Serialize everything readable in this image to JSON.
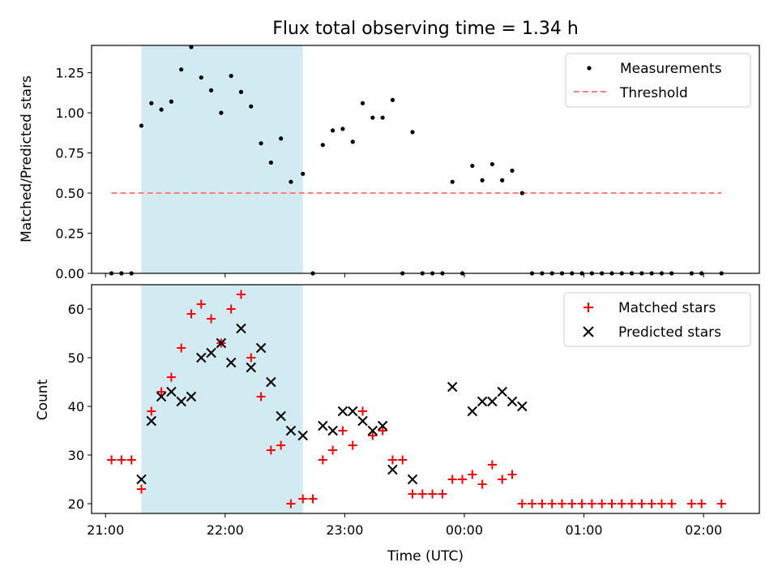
{
  "chart_data": [
    {
      "type": "scatter",
      "title": "Flux total observing time = 1.34 h",
      "xlabel": "",
      "ylabel": "Matched/Predicted stars",
      "xlim": [
        "20:53",
        "02:28"
      ],
      "ylim": [
        0,
        1.42
      ],
      "yticks": [
        "0.00",
        "0.25",
        "0.50",
        "0.75",
        "1.00",
        "1.25"
      ],
      "highlight_span": [
        "21:18",
        "22:39"
      ],
      "highlight_color": "#add8e6",
      "legend_position": "upper right",
      "series": [
        {
          "name": "Measurements",
          "color": "#000000",
          "marker": "dot",
          "points": [
            [
              "21:03",
              0
            ],
            [
              "21:08",
              0
            ],
            [
              "21:13",
              0
            ],
            [
              "21:18",
              0.92
            ],
            [
              "21:23",
              1.06
            ],
            [
              "21:28",
              1.02
            ],
            [
              "21:33",
              1.07
            ],
            [
              "21:38",
              1.27
            ],
            [
              "21:43",
              1.41
            ],
            [
              "21:48",
              1.22
            ],
            [
              "21:53",
              1.14
            ],
            [
              "21:58",
              1.0
            ],
            [
              "22:03",
              1.23
            ],
            [
              "22:08",
              1.13
            ],
            [
              "22:13",
              1.04
            ],
            [
              "22:18",
              0.81
            ],
            [
              "22:23",
              0.69
            ],
            [
              "22:28",
              0.84
            ],
            [
              "22:33",
              0.57
            ],
            [
              "22:39",
              0.62
            ],
            [
              "22:44",
              0
            ],
            [
              "22:49",
              0.8
            ],
            [
              "22:54",
              0.89
            ],
            [
              "22:59",
              0.9
            ],
            [
              "23:04",
              0.82
            ],
            [
              "23:09",
              1.06
            ],
            [
              "23:14",
              0.97
            ],
            [
              "23:19",
              0.97
            ],
            [
              "23:24",
              1.08
            ],
            [
              "23:29",
              0
            ],
            [
              "23:34",
              0.88
            ],
            [
              "23:39",
              0
            ],
            [
              "23:44",
              0
            ],
            [
              "23:49",
              0
            ],
            [
              "23:59",
              0
            ],
            [
              "23:54",
              0.57
            ],
            [
              "00:04",
              0.67
            ],
            [
              "00:09",
              0.58
            ],
            [
              "00:14",
              0.68
            ],
            [
              "00:19",
              0.58
            ],
            [
              "00:24",
              0.64
            ],
            [
              "00:29",
              0.5
            ],
            [
              "00:34",
              0
            ],
            [
              "00:39",
              0
            ],
            [
              "00:44",
              0
            ],
            [
              "00:49",
              0
            ],
            [
              "00:54",
              0
            ],
            [
              "00:59",
              0
            ],
            [
              "01:04",
              0
            ],
            [
              "01:09",
              0
            ],
            [
              "01:14",
              0
            ],
            [
              "01:19",
              0
            ],
            [
              "01:24",
              0
            ],
            [
              "01:29",
              0
            ],
            [
              "01:34",
              0
            ],
            [
              "01:39",
              0
            ],
            [
              "01:44",
              0
            ],
            [
              "01:54",
              0
            ],
            [
              "01:59",
              0
            ],
            [
              "02:09",
              0
            ]
          ]
        },
        {
          "name": "Threshold",
          "color": "#ff7f7f",
          "style": "dashed",
          "x": [
            "21:03",
            "02:09"
          ],
          "y": [
            0.5,
            0.5
          ]
        }
      ]
    },
    {
      "type": "scatter",
      "title": "",
      "xlabel": "Time (UTC)",
      "ylabel": "Count",
      "xlim": [
        "20:53",
        "02:28"
      ],
      "ylim": [
        18,
        65
      ],
      "yticks": [
        "20",
        "30",
        "40",
        "50",
        "60"
      ],
      "xticks": [
        "21:00",
        "22:00",
        "23:00",
        "00:00",
        "01:00",
        "02:00"
      ],
      "highlight_span": [
        "21:18",
        "22:39"
      ],
      "highlight_color": "#add8e6",
      "legend_position": "upper right",
      "series": [
        {
          "name": "Matched stars",
          "color": "#ff0000",
          "marker": "plus",
          "points": [
            [
              "21:03",
              29
            ],
            [
              "21:08",
              29
            ],
            [
              "21:13",
              29
            ],
            [
              "21:18",
              23
            ],
            [
              "21:23",
              39
            ],
            [
              "21:28",
              43
            ],
            [
              "21:33",
              46
            ],
            [
              "21:38",
              52
            ],
            [
              "21:43",
              59
            ],
            [
              "21:48",
              61
            ],
            [
              "21:53",
              58
            ],
            [
              "21:58",
              53
            ],
            [
              "22:03",
              60
            ],
            [
              "22:08",
              63
            ],
            [
              "22:13",
              50
            ],
            [
              "22:18",
              42
            ],
            [
              "22:23",
              31
            ],
            [
              "22:28",
              32
            ],
            [
              "22:33",
              20
            ],
            [
              "22:39",
              21
            ],
            [
              "22:44",
              21
            ],
            [
              "22:49",
              29
            ],
            [
              "22:54",
              31
            ],
            [
              "22:59",
              35
            ],
            [
              "23:04",
              32
            ],
            [
              "23:09",
              39
            ],
            [
              "23:14",
              34
            ],
            [
              "23:19",
              35
            ],
            [
              "23:24",
              29
            ],
            [
              "23:29",
              29
            ],
            [
              "23:34",
              22
            ],
            [
              "23:39",
              22
            ],
            [
              "23:44",
              22
            ],
            [
              "23:49",
              22
            ],
            [
              "23:54",
              25
            ],
            [
              "23:59",
              25
            ],
            [
              "00:04",
              26
            ],
            [
              "00:09",
              24
            ],
            [
              "00:14",
              28
            ],
            [
              "00:19",
              25
            ],
            [
              "00:24",
              26
            ],
            [
              "00:29",
              20
            ],
            [
              "00:34",
              20
            ],
            [
              "00:39",
              20
            ],
            [
              "00:44",
              20
            ],
            [
              "00:49",
              20
            ],
            [
              "00:54",
              20
            ],
            [
              "00:59",
              20
            ],
            [
              "01:04",
              20
            ],
            [
              "01:09",
              20
            ],
            [
              "01:14",
              20
            ],
            [
              "01:19",
              20
            ],
            [
              "01:24",
              20
            ],
            [
              "01:29",
              20
            ],
            [
              "01:34",
              20
            ],
            [
              "01:39",
              20
            ],
            [
              "01:44",
              20
            ],
            [
              "01:54",
              20
            ],
            [
              "01:59",
              20
            ],
            [
              "02:09",
              20
            ]
          ]
        },
        {
          "name": "Predicted stars",
          "color": "#000000",
          "marker": "x",
          "points": [
            [
              "21:18",
              25
            ],
            [
              "21:23",
              37
            ],
            [
              "21:28",
              42
            ],
            [
              "21:33",
              43
            ],
            [
              "21:38",
              41
            ],
            [
              "21:43",
              42
            ],
            [
              "21:48",
              50
            ],
            [
              "21:53",
              51
            ],
            [
              "21:58",
              53
            ],
            [
              "22:03",
              49
            ],
            [
              "22:08",
              56
            ],
            [
              "22:13",
              48
            ],
            [
              "22:18",
              52
            ],
            [
              "22:23",
              45
            ],
            [
              "22:28",
              38
            ],
            [
              "22:33",
              35
            ],
            [
              "22:39",
              34
            ],
            [
              "22:49",
              36
            ],
            [
              "22:54",
              35
            ],
            [
              "22:59",
              39
            ],
            [
              "23:04",
              39
            ],
            [
              "23:09",
              37
            ],
            [
              "23:14",
              35
            ],
            [
              "23:19",
              36
            ],
            [
              "23:24",
              27
            ],
            [
              "23:34",
              25
            ],
            [
              "23:54",
              44
            ],
            [
              "00:04",
              39
            ],
            [
              "00:09",
              41
            ],
            [
              "00:14",
              41
            ],
            [
              "00:19",
              43
            ],
            [
              "00:24",
              41
            ],
            [
              "00:29",
              40
            ]
          ]
        }
      ]
    }
  ]
}
